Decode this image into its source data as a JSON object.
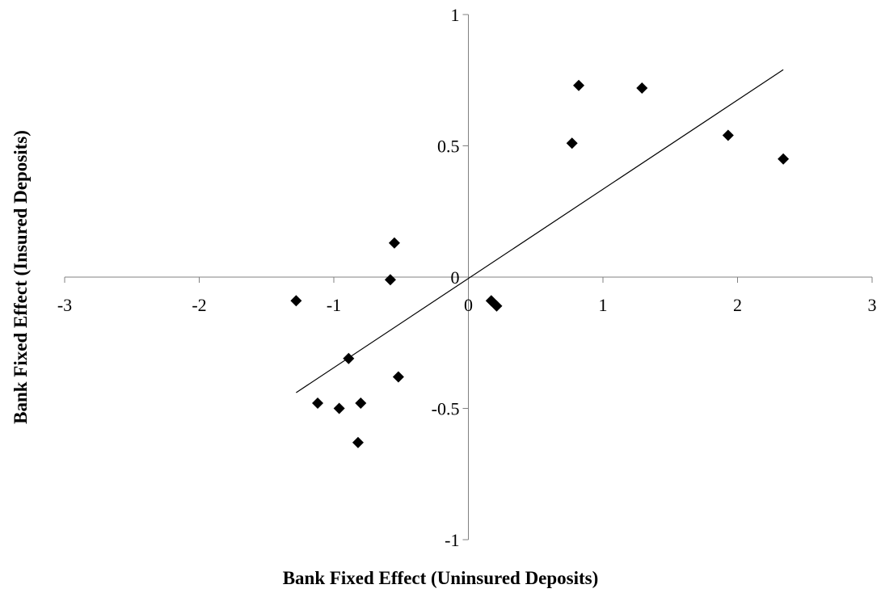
{
  "chart_data": {
    "type": "scatter",
    "title": "",
    "xlabel": "Bank Fixed Effect (Uninsured Deposits)",
    "ylabel": "Bank Fixed Effect (Insured Deposits)",
    "xlim": [
      -3,
      3
    ],
    "ylim": [
      -1,
      1
    ],
    "x_ticks": [
      "-3",
      "-2",
      "-1",
      "0",
      "1",
      "2",
      "3"
    ],
    "y_ticks": [
      "1",
      "0.5",
      "0",
      "-0.5",
      "-1"
    ],
    "x_tick_values": [
      -3,
      -2,
      -1,
      0,
      1,
      2,
      3
    ],
    "y_tick_values": [
      1,
      0.5,
      0,
      -0.5,
      -1
    ],
    "grid": false,
    "legend": "none",
    "marker": "diamond",
    "marker_color": "#000000",
    "line_color": "#000000",
    "series": [
      {
        "points": [
          {
            "x": -1.28,
            "y": -0.09
          },
          {
            "x": -0.55,
            "y": 0.13
          },
          {
            "x": -0.58,
            "y": -0.01
          },
          {
            "x": -0.89,
            "y": -0.31
          },
          {
            "x": -0.52,
            "y": -0.38
          },
          {
            "x": -1.12,
            "y": -0.48
          },
          {
            "x": -0.96,
            "y": -0.5
          },
          {
            "x": -0.8,
            "y": -0.48
          },
          {
            "x": -0.82,
            "y": -0.63
          },
          {
            "x": 0.17,
            "y": -0.09
          },
          {
            "x": 0.21,
            "y": -0.11
          },
          {
            "x": 0.77,
            "y": 0.51
          },
          {
            "x": 0.82,
            "y": 0.73
          },
          {
            "x": 1.29,
            "y": 0.72
          },
          {
            "x": 1.93,
            "y": 0.54
          },
          {
            "x": 2.34,
            "y": 0.45
          }
        ]
      }
    ],
    "trendline": {
      "x": [
        -1.28,
        2.34
      ],
      "y": [
        -0.44,
        0.79
      ]
    }
  }
}
